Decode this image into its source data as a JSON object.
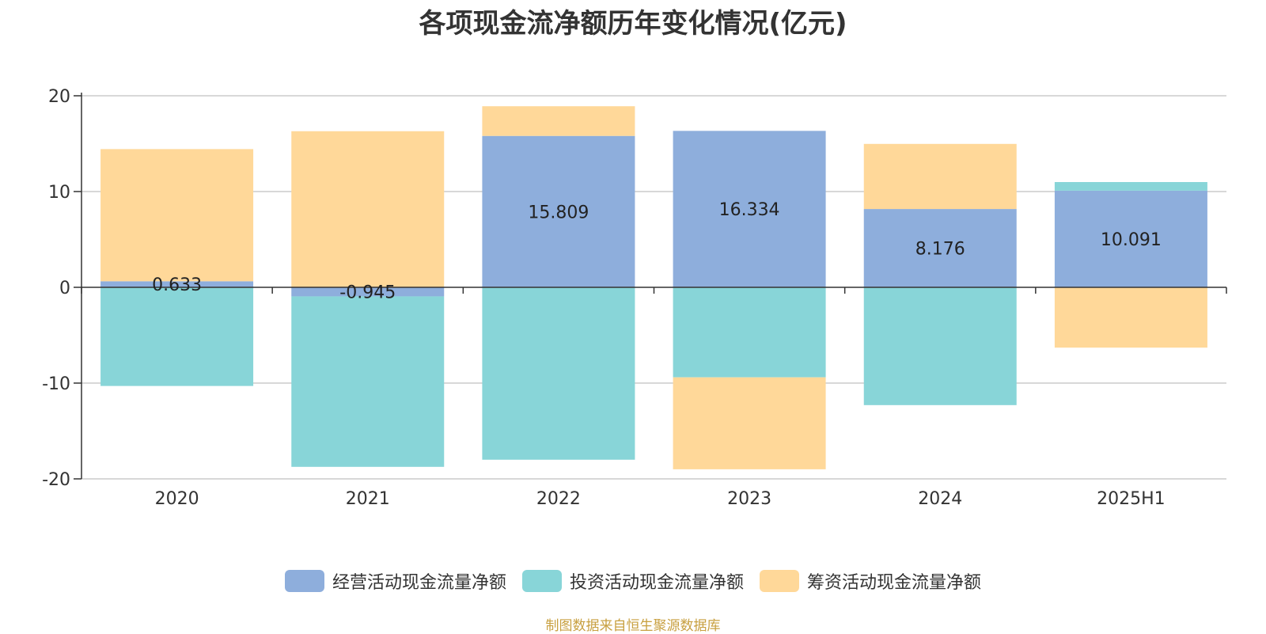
{
  "chart_data": {
    "type": "bar",
    "stacked": true,
    "title": "各项现金流净额历年变化情况(亿元)",
    "categories": [
      "2020",
      "2021",
      "2022",
      "2023",
      "2024",
      "2025H1"
    ],
    "ylim": [
      -20,
      20
    ],
    "yticks": [
      20,
      10,
      0,
      -10,
      -20
    ],
    "grid": true,
    "legend_position": "bottom",
    "series": [
      {
        "name": "经营活动现金流量净额",
        "color": "#8eaedc",
        "values": [
          0.633,
          -0.945,
          15.809,
          16.334,
          8.176,
          10.091
        ],
        "labels": [
          "0.633",
          "-0.945",
          "15.809",
          "16.334",
          "8.176",
          "10.091"
        ]
      },
      {
        "name": "投资活动现金流量净额",
        "color": "#88d5d8",
        "values": [
          -10.3,
          -17.8,
          -18.0,
          -9.4,
          -12.3,
          0.9
        ]
      },
      {
        "name": "筹资活动现金流量净额",
        "color": "#ffd899",
        "values": [
          13.8,
          16.3,
          3.1,
          -9.6,
          6.8,
          -6.3
        ]
      }
    ]
  },
  "source": "制图数据来自恒生聚源数据库"
}
